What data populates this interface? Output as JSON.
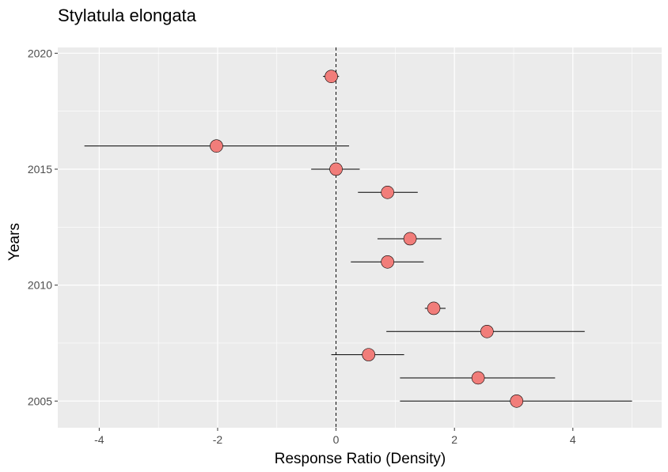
{
  "chart_data": {
    "type": "scatter",
    "title": "Stylatula elongata",
    "xlabel": "Response Ratio (Density)",
    "ylabel": "Years",
    "xlim": [
      -4.7,
      5.5
    ],
    "ylim": [
      2003.85,
      2020.25
    ],
    "x_ticks": [
      -4,
      -2,
      0,
      2,
      4
    ],
    "x_tick_labels": [
      "-4",
      "-2",
      "0",
      "2",
      "4"
    ],
    "y_ticks": [
      2005,
      2010,
      2015,
      2020
    ],
    "y_tick_labels": [
      "2005",
      "2010",
      "2015",
      "2020"
    ],
    "grid": true,
    "legend": "none",
    "reference_line": {
      "x": 0,
      "style": "dashed"
    },
    "point_color": "#f17d7a",
    "panel_color": "#ebebeb",
    "points": [
      {
        "year": 2005,
        "value": 3.05,
        "lower": 1.08,
        "upper": 5.0
      },
      {
        "year": 2006,
        "value": 2.4,
        "lower": 1.08,
        "upper": 3.7
      },
      {
        "year": 2007,
        "value": 0.55,
        "lower": -0.08,
        "upper": 1.15
      },
      {
        "year": 2008,
        "value": 2.55,
        "lower": 0.85,
        "upper": 4.2
      },
      {
        "year": 2009,
        "value": 1.65,
        "lower": 1.5,
        "upper": 1.85
      },
      {
        "year": 2011,
        "value": 0.87,
        "lower": 0.25,
        "upper": 1.48
      },
      {
        "year": 2012,
        "value": 1.25,
        "lower": 0.7,
        "upper": 1.78
      },
      {
        "year": 2014,
        "value": 0.87,
        "lower": 0.37,
        "upper": 1.38
      },
      {
        "year": 2015,
        "value": 0.0,
        "lower": -0.42,
        "upper": 0.4
      },
      {
        "year": 2016,
        "value": -2.02,
        "lower": -4.25,
        "upper": 0.22
      },
      {
        "year": 2019,
        "value": -0.08,
        "lower": -0.22,
        "upper": 0.05
      }
    ]
  }
}
